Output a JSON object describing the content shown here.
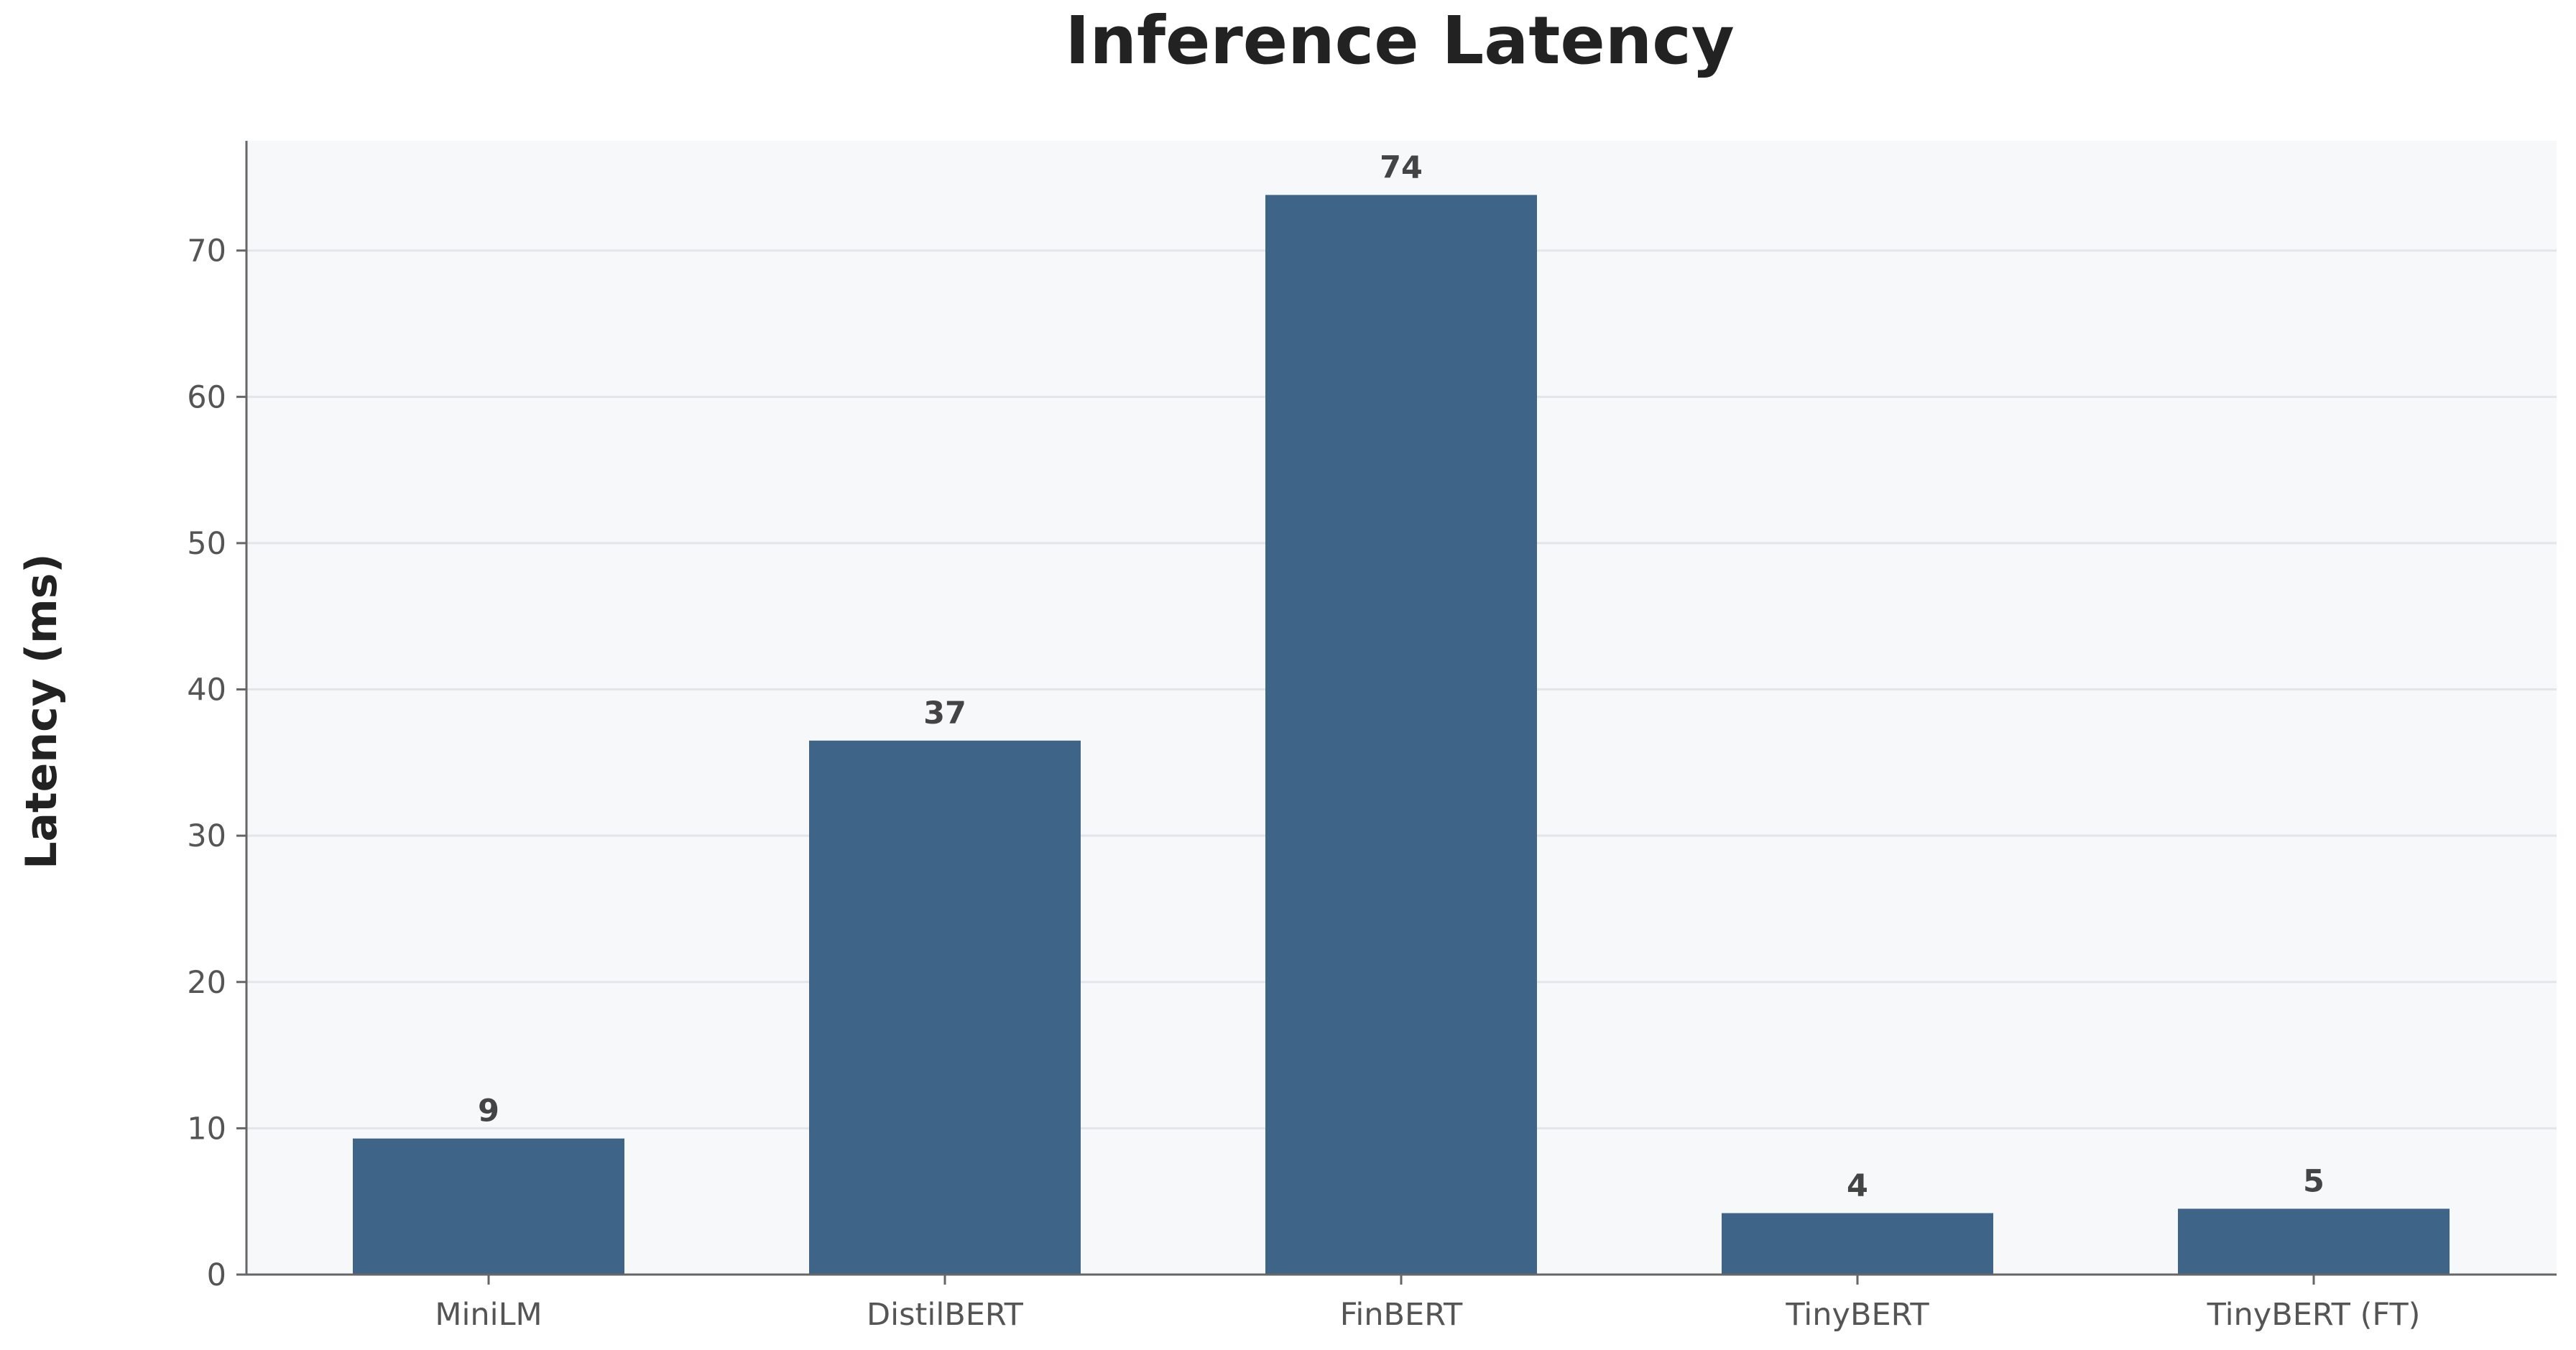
{
  "chart_data": {
    "type": "bar",
    "title": "Inference Latency",
    "xlabel": "",
    "ylabel": "Latency (ms)",
    "categories": [
      "MiniLM",
      "DistilBERT",
      "FinBERT",
      "TinyBERT",
      "TinyBERT (FT)"
    ],
    "values": [
      9.3,
      36.5,
      73.8,
      4.2,
      4.5
    ],
    "value_labels": [
      "9",
      "37",
      "74",
      "4",
      "5"
    ],
    "ylim": [
      0,
      77.5
    ],
    "yticks": [
      0,
      10,
      20,
      30,
      40,
      50,
      60,
      70
    ],
    "grid": true,
    "legend": "none",
    "colors": {
      "bar": "#3e6488",
      "plot_background": "#f7f8fa",
      "grid": "#e3e5e8",
      "axis": "#666666"
    }
  }
}
